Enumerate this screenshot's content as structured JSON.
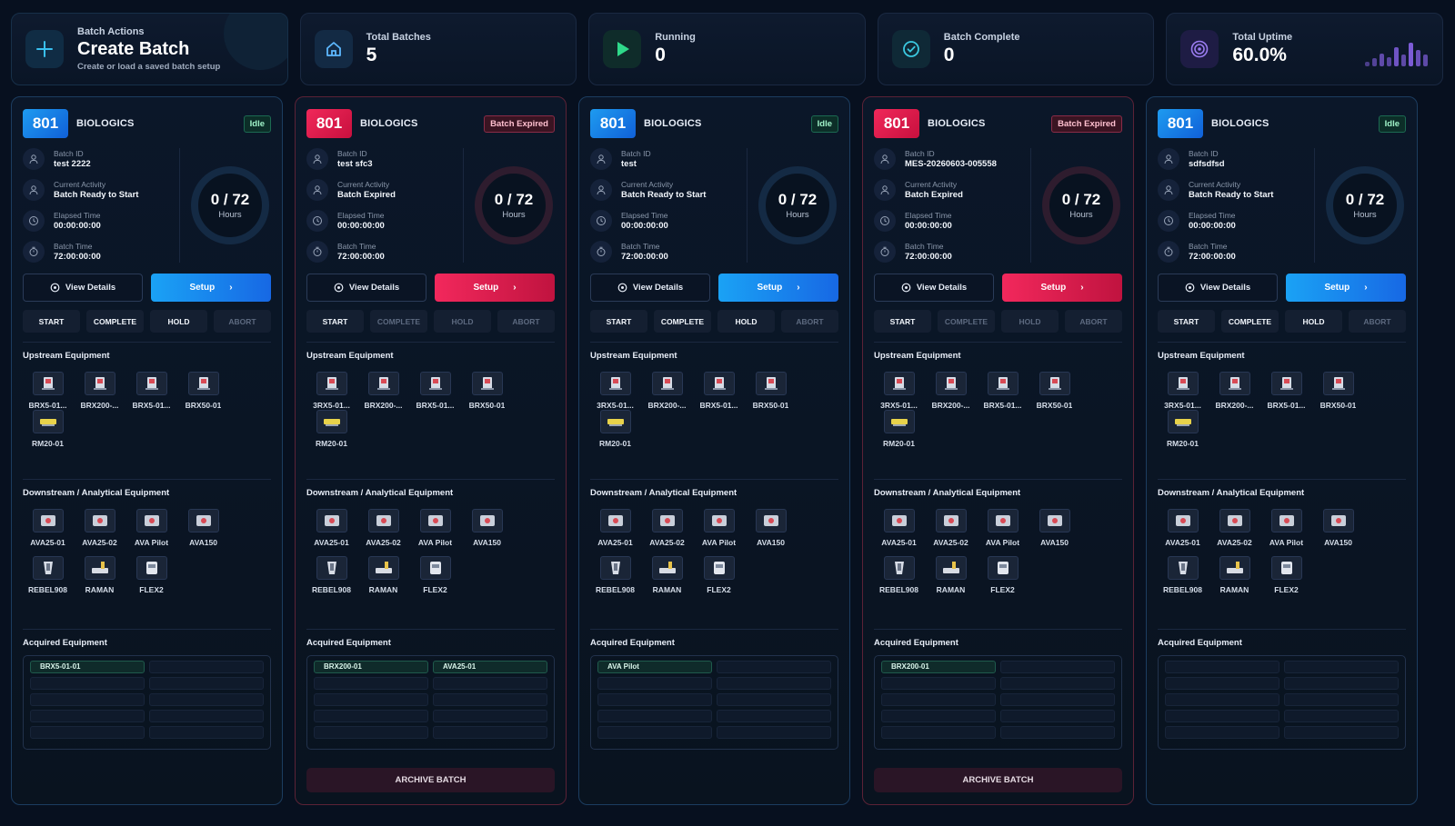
{
  "create": {
    "kicker": "Batch Actions",
    "title": "Create Batch",
    "subtitle": "Create or load a saved batch setup"
  },
  "stats": [
    {
      "label": "Total Batches",
      "value": "5",
      "icon": "home-icon",
      "color": "#5db8ff"
    },
    {
      "label": "Running",
      "value": "0",
      "icon": "play-icon",
      "color": "#2fd98a"
    },
    {
      "label": "Batch Complete",
      "value": "0",
      "icon": "check-circle-icon",
      "color": "#3bc9e0"
    },
    {
      "label": "Total Uptime",
      "value": "60.0%",
      "icon": "target-icon",
      "color": "#9a7cf0"
    }
  ],
  "uptime_bars": [
    0.2,
    0.35,
    0.55,
    0.4,
    0.8,
    0.5,
    1.0,
    0.7,
    0.5
  ],
  "labels": {
    "batch_id": "Batch ID",
    "current_activity": "Current Activity",
    "elapsed_time": "Elapsed Time",
    "batch_time": "Batch Time",
    "hours": "Hours",
    "view_details": "View Details",
    "setup": "Setup",
    "start": "START",
    "complete": "COMPLETE",
    "hold": "HOLD",
    "abort": "ABORT",
    "upstream": "Upstream Equipment",
    "downstream": "Downstream / Analytical Equipment",
    "acquired": "Acquired Equipment",
    "archive": "ARCHIVE BATCH"
  },
  "upstream_equipment": [
    "BRX5-01...",
    "BRX200-...",
    "BRX5-01...",
    "BRX50-01",
    "RM20-01"
  ],
  "upstream_equipment_clipped": [
    "3RX5-01...",
    "BRX200-...",
    "BRX5-01...",
    "BRX50-01",
    "RM20-01"
  ],
  "downstream_equipment": [
    "AVA25-01",
    "AVA25-02",
    "AVA Pilot",
    "AVA150",
    "REBEL908",
    "RAMAN",
    "FLEX2"
  ],
  "batches": [
    {
      "number": "801",
      "org": "BIOLOGICS",
      "status": "Idle",
      "theme": "blue",
      "batch_id": "test 2222",
      "activity": "Batch Ready to Start",
      "elapsed": "00:00:00:00",
      "batch_time": "72:00:00:00",
      "progress": "0 / 72",
      "hold_enabled": true,
      "acquired": [
        "BRX5-01-01"
      ],
      "archive": false
    },
    {
      "number": "801",
      "org": "BIOLOGICS",
      "status": "Batch Expired",
      "theme": "red",
      "batch_id": "test sfc3",
      "activity": "Batch Expired",
      "elapsed": "00:00:00:00",
      "batch_time": "72:00:00:00",
      "progress": "0 / 72",
      "hold_enabled": false,
      "acquired": [
        "BRX200-01",
        "AVA25-01"
      ],
      "archive": true
    },
    {
      "number": "801",
      "org": "BIOLOGICS",
      "status": "Idle",
      "theme": "blue",
      "batch_id": "test",
      "activity": "Batch Ready to Start",
      "elapsed": "00:00:00:00",
      "batch_time": "72:00:00:00",
      "progress": "0 / 72",
      "hold_enabled": true,
      "acquired": [
        "AVA Pilot"
      ],
      "archive": false
    },
    {
      "number": "801",
      "org": "BIOLOGICS",
      "status": "Batch Expired",
      "theme": "red",
      "batch_id": "MES-20260603-005558",
      "activity": "Batch Expired",
      "elapsed": "00:00:00:00",
      "batch_time": "72:00:00:00",
      "progress": "0 / 72",
      "hold_enabled": false,
      "acquired": [
        "BRX200-01"
      ],
      "archive": true
    },
    {
      "number": "801",
      "org": "BIOLOGICS",
      "status": "Idle",
      "theme": "blue",
      "batch_id": "sdfsdfsd",
      "activity": "Batch Ready to Start",
      "elapsed": "00:00:00:00",
      "batch_time": "72:00:00:00",
      "progress": "0 / 72",
      "hold_enabled": true,
      "acquired": [],
      "archive": false
    }
  ]
}
